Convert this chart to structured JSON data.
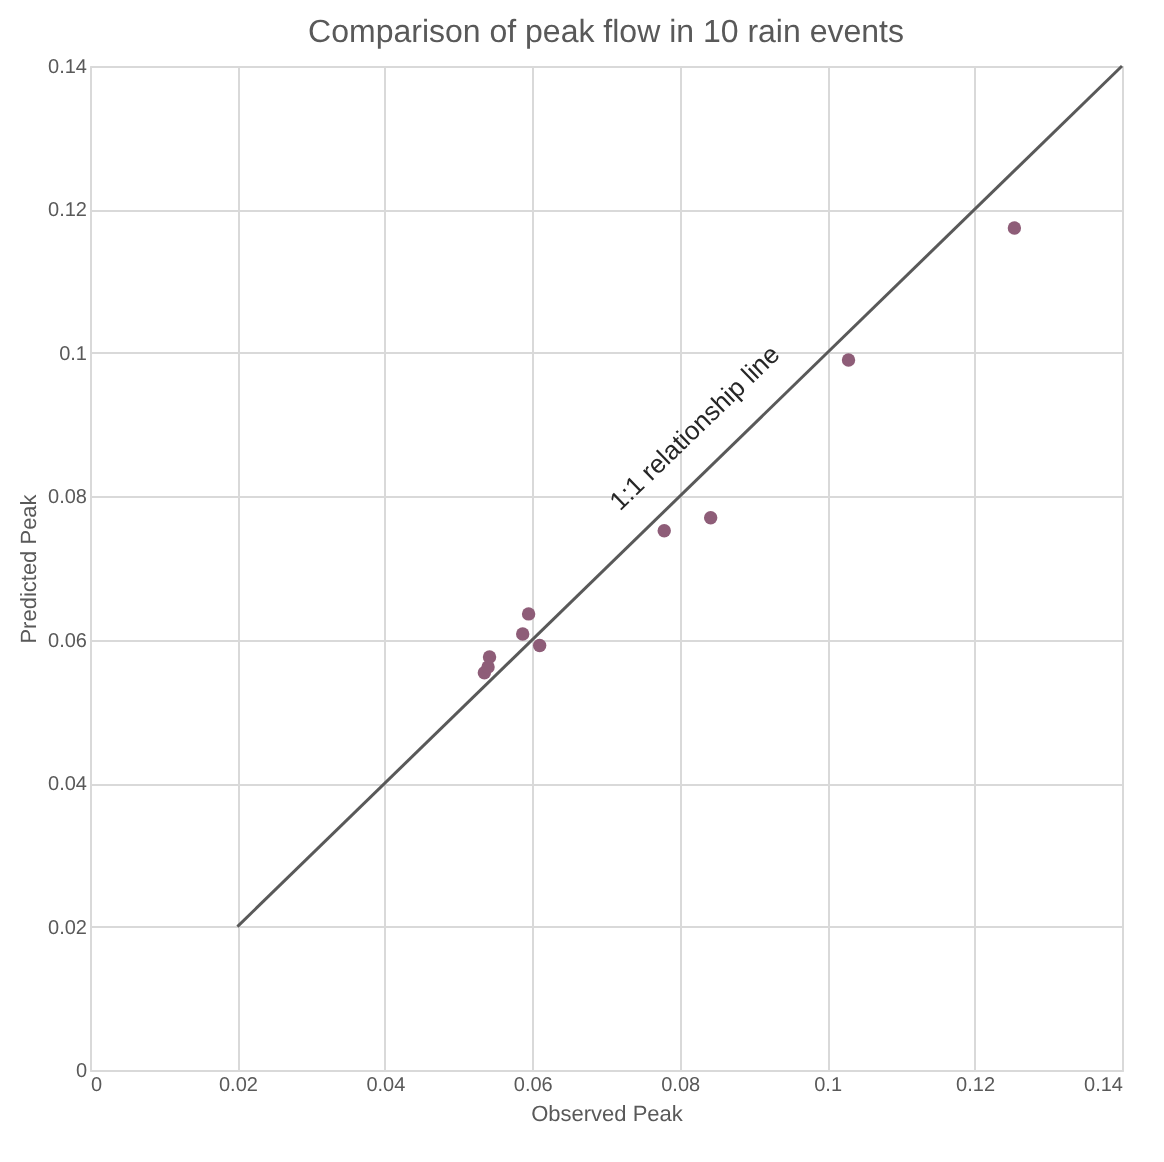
{
  "chart_data": {
    "type": "scatter",
    "title": "Comparison of peak flow in  10 rain events",
    "xlabel": "Observed Peak",
    "ylabel": "Predicted Peak",
    "series": [
      {
        "color": "#8e5d78",
        "x": [
          0.1254,
          0.1029,
          0.0779,
          0.0842,
          0.0595,
          0.0587,
          0.061,
          0.0542,
          0.0535,
          0.054
        ],
        "values": [
          0.1174,
          0.099,
          0.0752,
          0.077,
          0.0636,
          0.0608,
          0.0592,
          0.0576,
          0.0554,
          0.0562
        ]
      },
      {
        "type": "line",
        "marker": "none",
        "color": "#595959",
        "x": [
          0.02,
          0.14
        ],
        "values": [
          0.02,
          0.14
        ]
      }
    ],
    "annotations": [
      {
        "text": "1:1 relationship line",
        "x": 0.088,
        "y": 0.088
      }
    ],
    "xlim": [
      0,
      0.14
    ],
    "ylim": [
      0,
      0.14
    ],
    "xticks": [
      0,
      0.02,
      0.04,
      0.06,
      0.08,
      0.1,
      0.12,
      0.14
    ],
    "yticks": [
      0,
      0.02,
      0.04,
      0.06,
      0.08,
      0.1,
      0.12,
      0.14
    ],
    "grid": true,
    "marker": "circle"
  }
}
